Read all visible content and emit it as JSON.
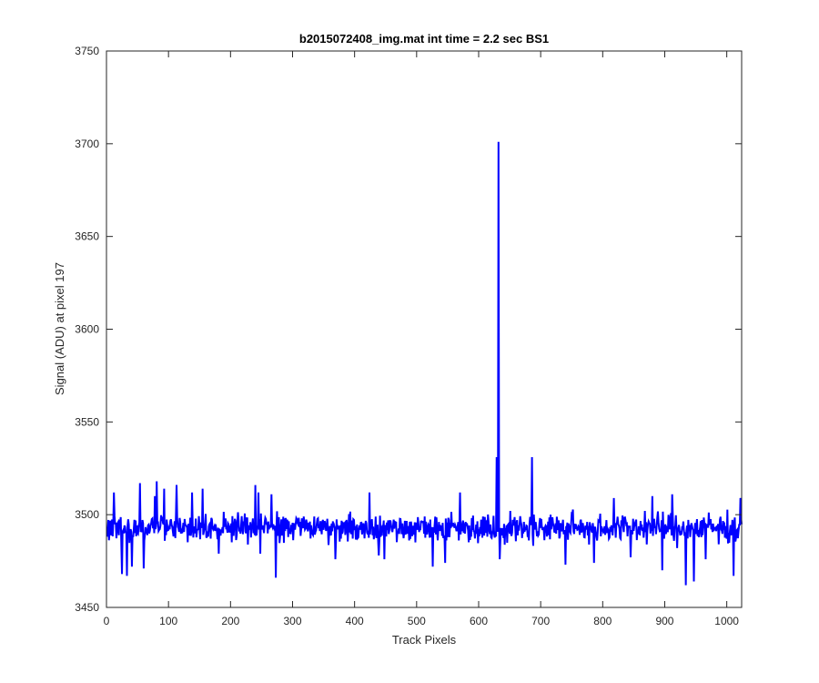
{
  "chart_data": {
    "type": "line",
    "title": "b2015072408_img.mat int time = 2.2 sec   BS1",
    "xlabel": "Track Pixels",
    "ylabel": "Signal (ADU) at pixel 197",
    "xlim": [
      0,
      1024
    ],
    "ylim": [
      3450,
      3750
    ],
    "xticks": [
      0,
      100,
      200,
      300,
      400,
      500,
      600,
      700,
      800,
      900,
      1000
    ],
    "yticks": [
      3450,
      3500,
      3550,
      3600,
      3650,
      3700,
      3750
    ],
    "grid": false,
    "series": [
      {
        "color": "#0000ff",
        "x_start": 1,
        "x_step": 1,
        "baseline": 3493,
        "noise_amplitude": 8,
        "y_excursions": [
          [
            12,
            3512
          ],
          [
            25,
            3468
          ],
          [
            33,
            3467
          ],
          [
            41,
            3472
          ],
          [
            54,
            3517
          ],
          [
            60,
            3471
          ],
          [
            78,
            3510
          ],
          [
            81,
            3518
          ],
          [
            93,
            3514
          ],
          [
            113,
            3516
          ],
          [
            138,
            3512
          ],
          [
            155,
            3514
          ],
          [
            181,
            3479
          ],
          [
            188,
            3490
          ],
          [
            240,
            3516
          ],
          [
            245,
            3512
          ],
          [
            248,
            3479
          ],
          [
            266,
            3511
          ],
          [
            273,
            3466
          ],
          [
            287,
            3498
          ],
          [
            318,
            3499
          ],
          [
            369,
            3476
          ],
          [
            424,
            3512
          ],
          [
            439,
            3478
          ],
          [
            448,
            3476
          ],
          [
            526,
            3472
          ],
          [
            546,
            3474
          ],
          [
            570,
            3512
          ],
          [
            629,
            3531
          ],
          [
            632,
            3701
          ],
          [
            634,
            3476
          ],
          [
            686,
            3531
          ],
          [
            740,
            3473
          ],
          [
            786,
            3474
          ],
          [
            818,
            3509
          ],
          [
            845,
            3477
          ],
          [
            868,
            3502
          ],
          [
            880,
            3510
          ],
          [
            896,
            3470
          ],
          [
            912,
            3511
          ],
          [
            920,
            3482
          ],
          [
            934,
            3462
          ],
          [
            947,
            3464
          ],
          [
            966,
            3476
          ],
          [
            987,
            3484
          ],
          [
            1011,
            3467
          ],
          [
            1022,
            3509
          ]
        ]
      }
    ]
  }
}
